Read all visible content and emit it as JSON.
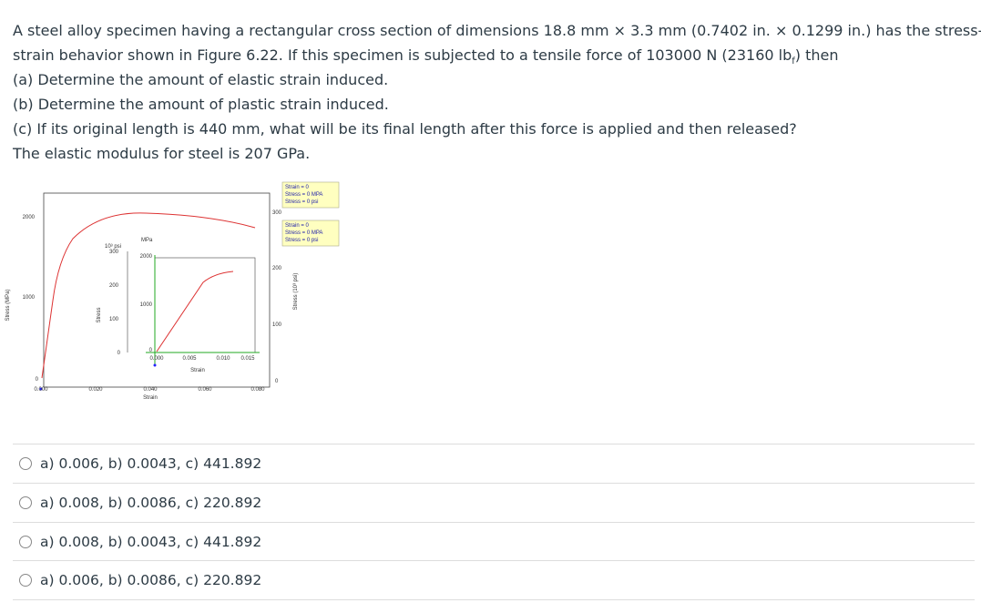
{
  "question": {
    "intro": [
      "A steel alloy specimen having a rectangular cross section of dimensions 18.8 mm × 3.3 mm (0.7402 in. × 0.1299 in.) has the stress-",
      "strain behavior shown in Figure 6.22. If this specimen is subjected to a tensile force of 103000 N (23160 lb"
    ],
    "subscript": "f",
    "intro_end": ") then",
    "parts": [
      {
        "label": "(a)",
        "text": "Determine the amount of elastic strain induced."
      },
      {
        "label": "(b)",
        "text": "Determine the amount of plastic strain induced."
      },
      {
        "label": "(c)",
        "text": "If its original length is 440 mm, what will be its final length after this force is applied and then released?"
      }
    ],
    "note": "The elastic modulus for steel is 207 GPa."
  },
  "figure": {
    "main_y_ticks": [
      "2000",
      "1000",
      "0"
    ],
    "main_y_label": "Stress (MPa)",
    "main_x_ticks": [
      "0.000",
      "0.020",
      "0.040",
      "0.060",
      "0.080"
    ],
    "main_x_label": "Strain",
    "right_y_ticks": [
      "300",
      "200",
      "100",
      "0"
    ],
    "right_y_label": "Stress (10³ psi)",
    "inset_psi_unit": "10³ psi",
    "inset_psi_ticks": [
      "300",
      "200",
      "100",
      "0"
    ],
    "inset_psi_label": "Stress",
    "inset_mpa_unit": "MPa",
    "inset_mpa_ticks": [
      "2000",
      "1000",
      "0"
    ],
    "inset_x_ticks": [
      "0.000",
      "0.005",
      "0.010",
      "0.015"
    ],
    "inset_x_label": "Strain",
    "readouts": [
      [
        "Strain = 0",
        "Stress = 0 MPA",
        "Stress = 0 psi"
      ],
      [
        "Strain = 0",
        "Stress = 0 MPA",
        "Stress = 0 psi"
      ]
    ]
  },
  "options": [
    "a) 0.006, b) 0.0043, c) 441.892",
    "a) 0.008, b) 0.0086, c) 220.892",
    "a) 0.008, b) 0.0043, c) 441.892",
    "a) 0.006, b) 0.0086, c) 220.892"
  ]
}
